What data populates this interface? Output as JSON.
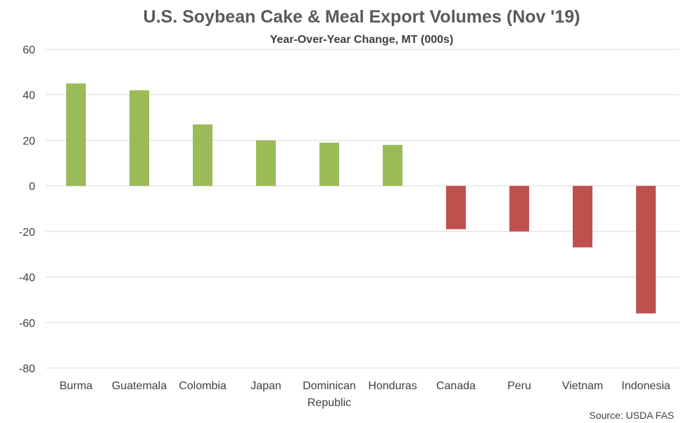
{
  "chart_data": {
    "type": "bar",
    "title": "U.S. Soybean Cake & Meal Export Volumes (Nov '19)",
    "subtitle": "Year-Over-Year Change, MT (000s)",
    "xlabel": "",
    "ylabel": "",
    "categories": [
      "Burma",
      "Guatemala",
      "Colombia",
      "Japan",
      "Dominican Republic",
      "Honduras",
      "Canada",
      "Peru",
      "Vietnam",
      "Indonesia"
    ],
    "values": [
      45,
      42,
      27,
      20,
      19,
      18,
      -19,
      -20,
      -27,
      -56
    ],
    "ylim": [
      -80,
      60
    ],
    "yticks": [
      60,
      40,
      20,
      0,
      -20,
      -40,
      -60,
      -80
    ],
    "grid": true,
    "legend": "none",
    "colors": {
      "positive": "#9bbb59",
      "negative": "#c0504d"
    },
    "source": "Source: USDA FAS"
  }
}
